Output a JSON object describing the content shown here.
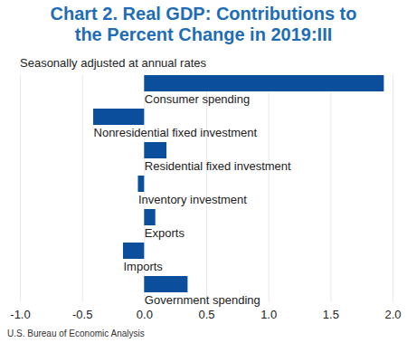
{
  "chart_data": {
    "type": "bar",
    "orientation": "horizontal",
    "title": "Chart 2. Real GDP: Contributions to the Percent Change in 2019:III",
    "subtitle": "Seasonally adjusted at annual rates",
    "caption": "U.S. Bureau of Economic Analysis",
    "categories": [
      "Consumer spending",
      "Nonresidential fixed investment",
      "Residential fixed investment",
      "Inventory investment",
      "Exports",
      "Imports",
      "Government spending"
    ],
    "values": [
      1.93,
      -0.41,
      0.18,
      -0.05,
      0.09,
      -0.17,
      0.35
    ],
    "color": "#0b4f9c",
    "xlim": [
      -1.0,
      2.0
    ],
    "xticks": [
      {
        "value": -1,
        "label": "-1.0"
      },
      -0.5,
      {
        "value": 0,
        "label": "0.0"
      },
      0.5,
      {
        "value": 1,
        "label": "1.0"
      },
      1.5,
      {
        "value": 2,
        "label": "2.0"
      }
    ],
    "grid": true,
    "tick_labels": "x"
  }
}
